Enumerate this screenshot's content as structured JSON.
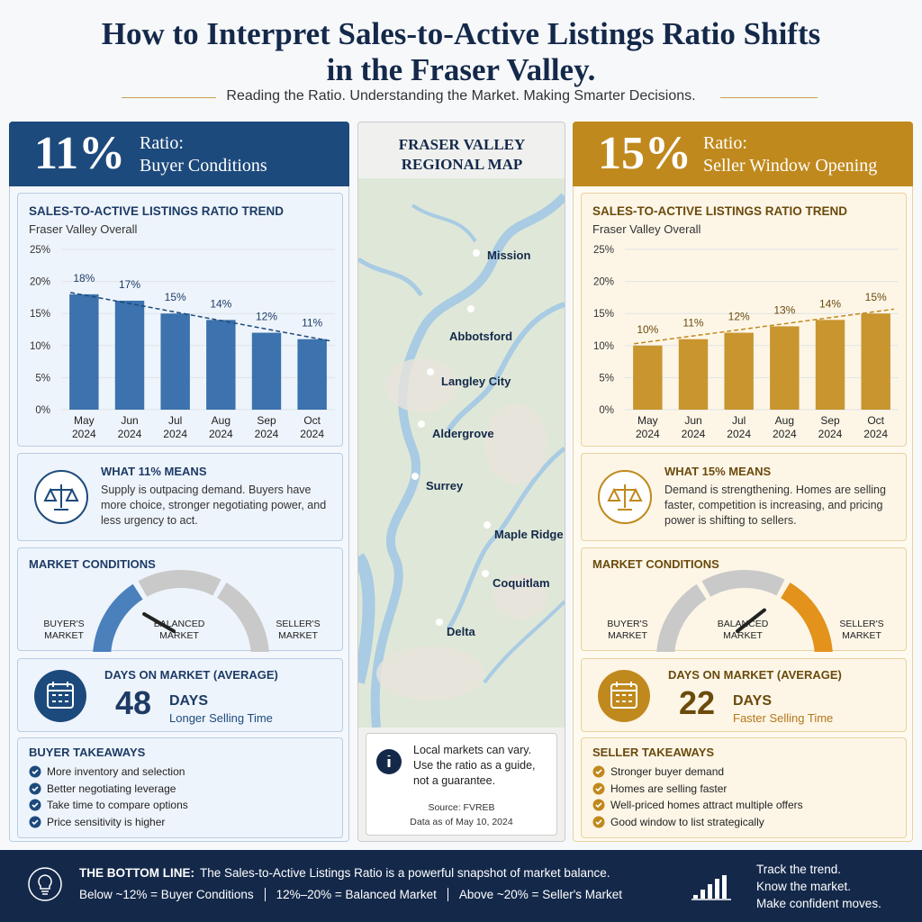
{
  "header": {
    "title": "How to Interpret Sales-to-Active Listings Ratio Shifts in the Fraser Valley.",
    "subtitle": "Reading the Ratio. Understanding the Market. Making Smarter Decisions."
  },
  "chart_data": [
    {
      "type": "bar",
      "title": "SALES-TO-ACTIVE LISTINGS RATIO TREND",
      "subtitle": "Fraser Valley Overall",
      "categories": [
        "May 2024",
        "Jun 2024",
        "Jul 2024",
        "Aug 2024",
        "Sep 2024",
        "Oct 2024"
      ],
      "values": [
        18,
        17,
        15,
        14,
        12,
        11
      ],
      "value_labels": [
        "18%",
        "17%",
        "15%",
        "14%",
        "12%",
        "11%"
      ],
      "color": "#3c72ad",
      "ylim": [
        0,
        25
      ],
      "yticks": [
        {
          "value": 0,
          "label": "0%"
        },
        {
          "value": 5,
          "label": "5%"
        },
        {
          "value": 10,
          "label": "10%"
        },
        {
          "value": 15,
          "label": "15%"
        },
        {
          "value": 20,
          "label": "20%"
        },
        {
          "value": 25,
          "label": "25%"
        }
      ]
    },
    {
      "type": "bar",
      "title": "SALES-TO-ACTIVE LISTINGS RATIO TREND",
      "subtitle": "Fraser Valley Overall",
      "categories": [
        "May 2024",
        "Jun 2024",
        "Jul 2024",
        "Aug 2024",
        "Sep 2024",
        "Oct 2024"
      ],
      "values": [
        10,
        11,
        12,
        13,
        14,
        15
      ],
      "value_labels": [
        "10%",
        "11%",
        "12%",
        "13%",
        "14%",
        "15%"
      ],
      "color": "#c8952e",
      "ylim": [
        0,
        25
      ],
      "yticks": [
        {
          "value": 0,
          "label": "0%"
        },
        {
          "value": 5,
          "label": "5%"
        },
        {
          "value": 10,
          "label": "10%"
        },
        {
          "value": 15,
          "label": "15%"
        },
        {
          "value": 20,
          "label": "20%"
        },
        {
          "value": 25,
          "label": "25%"
        }
      ]
    }
  ],
  "panels": [
    {
      "ratio": "11%",
      "ratio_label": "Ratio:",
      "condition": "Buyer Conditions",
      "meaning": {
        "title": "WHAT 11% MEANS",
        "text": "Supply is outpacing demand. Buyers have more choice, stronger negotiating power, and less urgency to act."
      },
      "conditions": {
        "title": "MARKET CONDITIONS",
        "labels": [
          "BUYER'S MARKET",
          "BALANCED MARKET",
          "SELLER'S MARKET"
        ]
      },
      "days": {
        "title": "DAYS ON MARKET (AVERAGE)",
        "value": 48,
        "unit": "DAYS",
        "note": "Longer Selling Time"
      },
      "takeaways": {
        "title": "BUYER TAKEAWAYS",
        "items": [
          "More inventory and selection",
          "Better negotiating leverage",
          "Take time to compare options",
          "Price sensitivity is higher"
        ]
      }
    },
    {
      "ratio": "15%",
      "ratio_label": "Ratio:",
      "condition": "Seller Window Opening",
      "meaning": {
        "title": "WHAT 15% MEANS",
        "text": "Demand is strengthening. Homes are selling faster, competition is increasing, and pricing power is shifting to sellers."
      },
      "conditions": {
        "title": "MARKET CONDITIONS",
        "labels": [
          "BUYER'S MARKET",
          "BALANCED MARKET",
          "SELLER'S MARKET"
        ]
      },
      "days": {
        "title": "DAYS ON MARKET (AVERAGE)",
        "value": 22,
        "unit": "DAYS",
        "note": "Faster Selling Time"
      },
      "takeaways": {
        "title": "SELLER TAKEAWAYS",
        "items": [
          "Stronger buyer demand",
          "Homes are selling faster",
          "Well-priced homes attract multiple offers",
          "Good window to list strategically"
        ]
      }
    }
  ],
  "map": {
    "title": "FRASER VALLEY REGIONAL MAP",
    "places": [
      "Mission",
      "Abbotsford",
      "Langley City",
      "Aldergrove",
      "Surrey",
      "Maple Ridge",
      "Coquitlam",
      "Delta"
    ],
    "note": "Local markets can vary. Use the ratio as a guide, not a guarantee.",
    "source": "Source: FVREB",
    "date": "Data as of May 10, 2024"
  },
  "footer": {
    "label": "THE BOTTOM LINE:",
    "text": "The Sales-to-Active Listings Ratio is a powerful snapshot of market balance.",
    "ranges": [
      "Below ~12% = Buyer Conditions",
      "12%–20% = Balanced Market",
      "Above ~20% = Seller's Market"
    ],
    "motto": [
      "Track the trend.",
      "Know the market.",
      "Make confident moves."
    ]
  }
}
